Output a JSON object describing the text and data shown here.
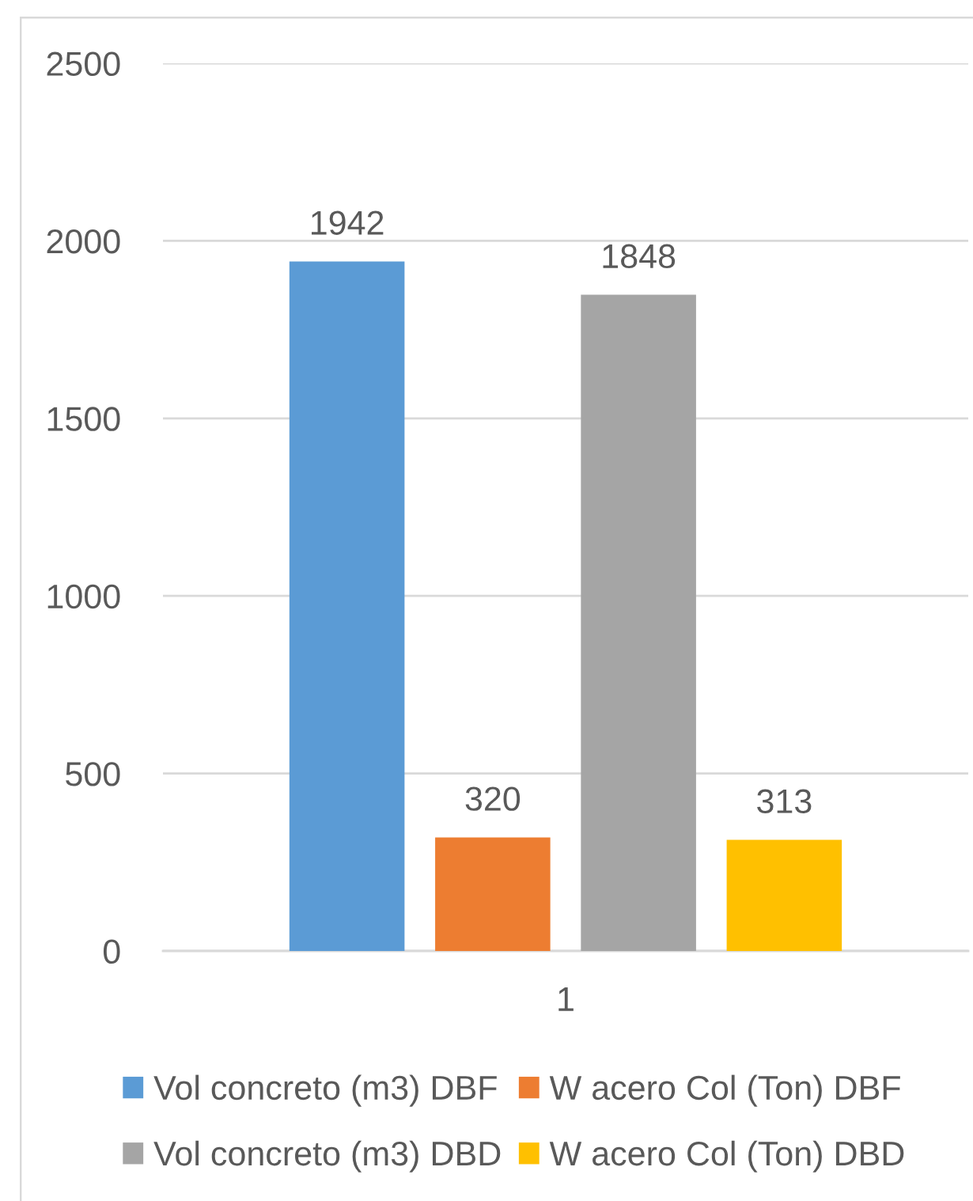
{
  "chart_data": {
    "type": "bar",
    "categories": [
      "1"
    ],
    "series": [
      {
        "name": "Vol concreto (m3) DBF",
        "color": "#5b9bd5",
        "values": [
          1942
        ]
      },
      {
        "name": "W acero Col (Ton) DBF",
        "color": "#ed7d31",
        "values": [
          320
        ]
      },
      {
        "name": "Vol concreto (m3) DBD",
        "color": "#a5a5a5",
        "values": [
          1848
        ]
      },
      {
        "name": "W acero Col (Ton) DBD",
        "color": "#ffc000",
        "values": [
          313
        ]
      }
    ],
    "ylim": [
      0,
      2500
    ],
    "yticks": [
      0,
      500,
      1000,
      1500,
      2000,
      2500
    ],
    "grid": "y",
    "legend": "bottom",
    "data_labels": true
  }
}
